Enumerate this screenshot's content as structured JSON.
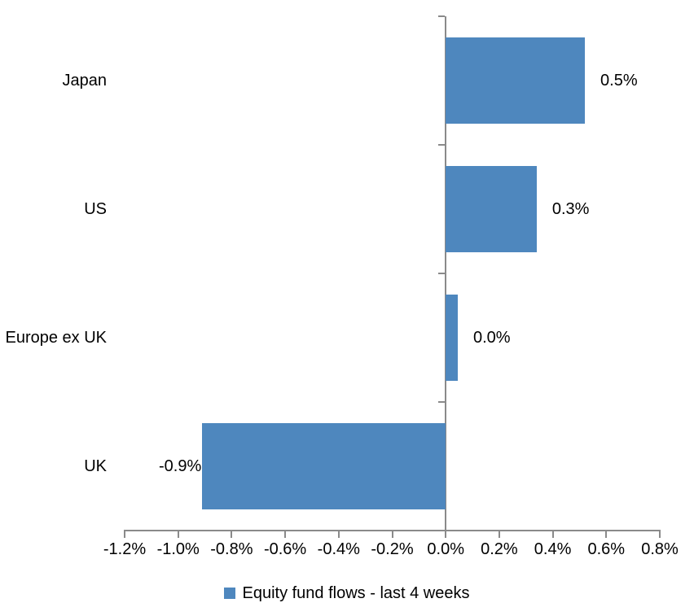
{
  "chart_data": {
    "type": "bar",
    "orientation": "horizontal",
    "title": "",
    "categories": [
      "Japan",
      "US",
      "Europe ex UK",
      "UK"
    ],
    "values": [
      0.5,
      0.3,
      0.0,
      -0.9
    ],
    "value_labels": [
      "0.5%",
      "0.3%",
      "0.0%",
      "-0.9%"
    ],
    "plot_values": [
      0.52,
      0.34,
      0.045,
      -0.91
    ],
    "series": [
      {
        "name": "Equity fund flows - last 4 weeks",
        "values": [
          0.5,
          0.3,
          0.0,
          -0.9
        ]
      }
    ],
    "xlabel": "",
    "ylabel": "",
    "xlim": [
      -1.2,
      0.8
    ],
    "x_tick_values": [
      -1.2,
      -1.0,
      -0.8,
      -0.6,
      -0.4,
      -0.2,
      0.0,
      0.2,
      0.4,
      0.6,
      0.8
    ],
    "x_ticks": [
      "-1.2%",
      "-1.0%",
      "-0.8%",
      "-0.6%",
      "-0.4%",
      "-0.2%",
      "0.0%",
      "0.2%",
      "0.4%",
      "0.6%",
      "0.8%"
    ],
    "grid": false,
    "legend_position": "bottom-center",
    "legend": [
      {
        "label": "Equity fund flows - last 4 weeks",
        "color": "#4E87BE"
      }
    ],
    "bar_color": "#4E87BE",
    "axis_color": "#8A8A8A",
    "text_color": "#000000",
    "background_color": "#FFFFFF"
  }
}
